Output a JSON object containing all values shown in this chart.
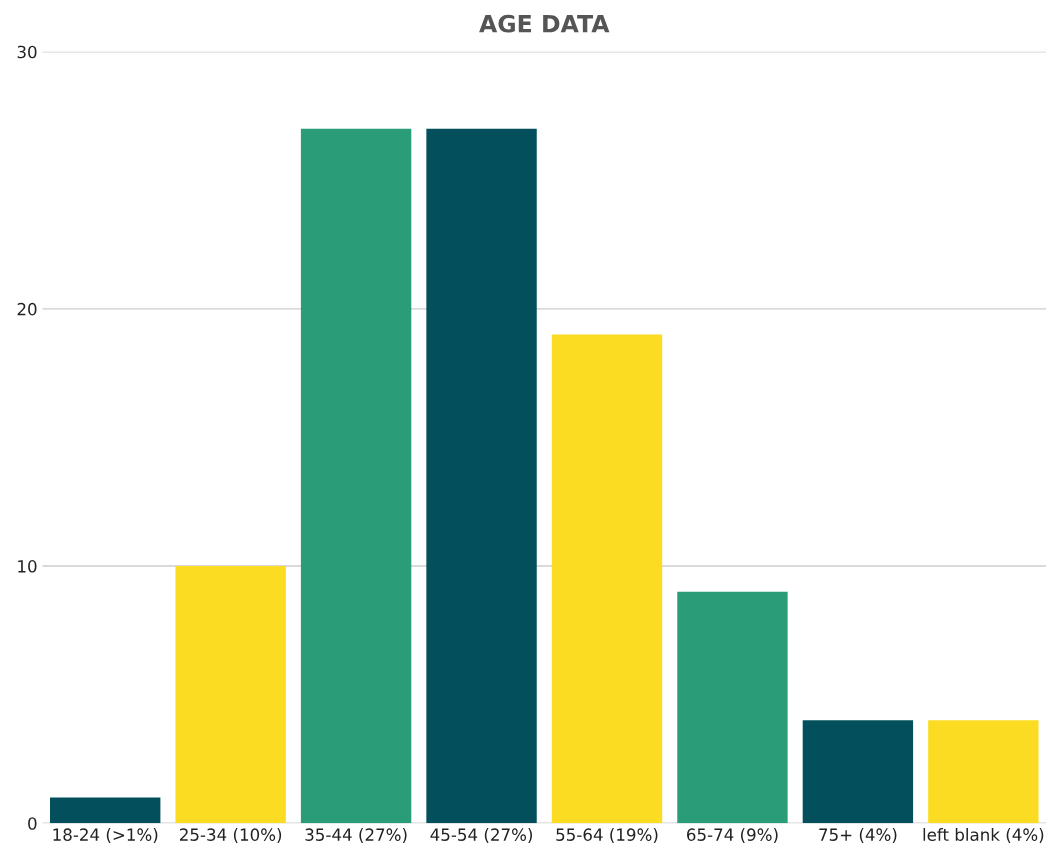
{
  "chart_data": {
    "type": "bar",
    "title": "AGE DATA",
    "categories": [
      "18-24 (>1%)",
      "25-34 (10%)",
      "35-44 (27%)",
      "45-54 (27%)",
      "55-64 (19%)",
      "65-74 (9%)",
      "75+ (4%)",
      "left blank (4%)"
    ],
    "values": [
      1,
      10,
      27,
      27,
      19,
      9,
      4,
      4
    ],
    "colors": [
      "#03505c",
      "#fcdc22",
      "#2a9d78",
      "#03505c",
      "#fcdc22",
      "#2a9d78",
      "#03505c",
      "#fcdc22"
    ],
    "ylim": [
      0,
      30
    ],
    "yticks": [
      0,
      10,
      20,
      30
    ],
    "grid": "y"
  }
}
